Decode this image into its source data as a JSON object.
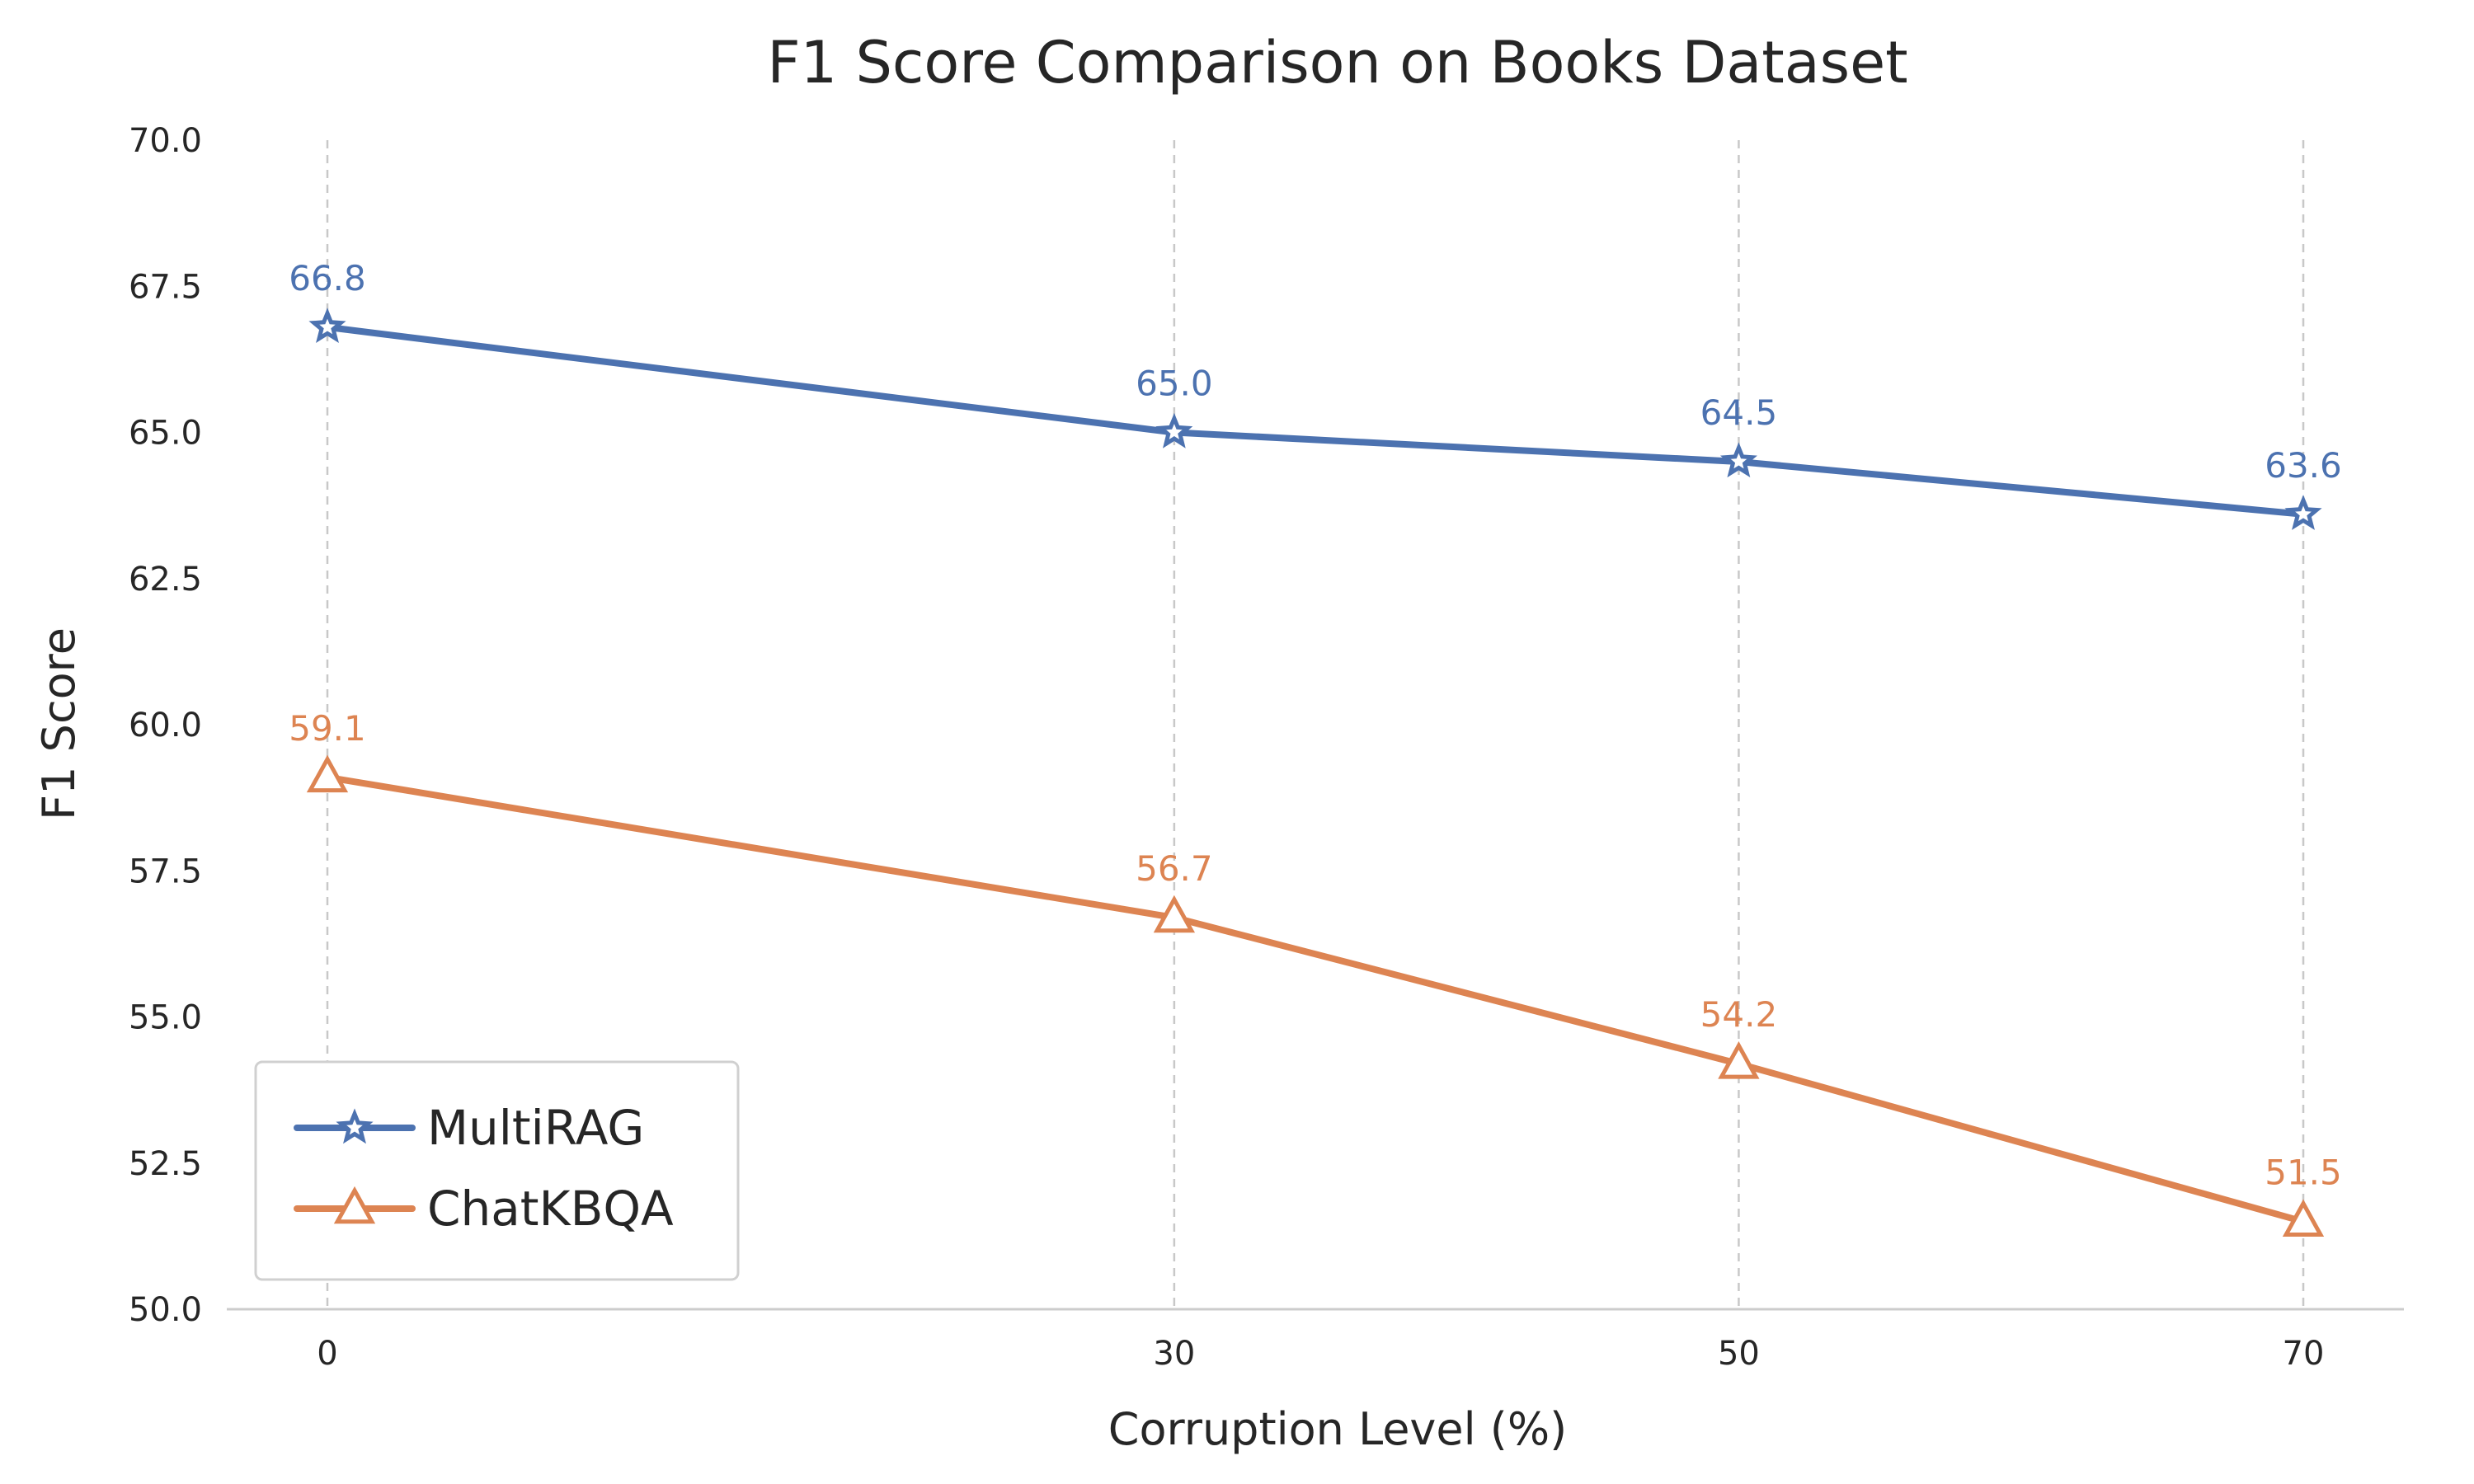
{
  "chart_data": {
    "type": "line",
    "title": "F1 Score Comparison on Books Dataset",
    "xlabel": "Corruption Level (%)",
    "ylabel": "F1 Score",
    "x": [
      0,
      30,
      50,
      70
    ],
    "xticks": [
      "0",
      "30",
      "50",
      "70"
    ],
    "ylim": [
      50.0,
      70.0
    ],
    "yticks": [
      "50.0",
      "52.5",
      "55.0",
      "57.5",
      "60.0",
      "62.5",
      "65.0",
      "67.5",
      "70.0"
    ],
    "grid": "vertical dashed",
    "legend_position": "lower-left",
    "series": [
      {
        "name": "MultiRAG",
        "values": [
          66.8,
          65.0,
          64.5,
          63.6
        ],
        "labels": [
          "66.8",
          "65.0",
          "64.5",
          "63.6"
        ],
        "color": "#4C72B0",
        "marker": "star"
      },
      {
        "name": "ChatKBQA",
        "values": [
          59.1,
          56.7,
          54.2,
          51.5
        ],
        "labels": [
          "59.1",
          "56.7",
          "54.2",
          "51.5"
        ],
        "color": "#DD8452",
        "marker": "triangle"
      }
    ]
  }
}
